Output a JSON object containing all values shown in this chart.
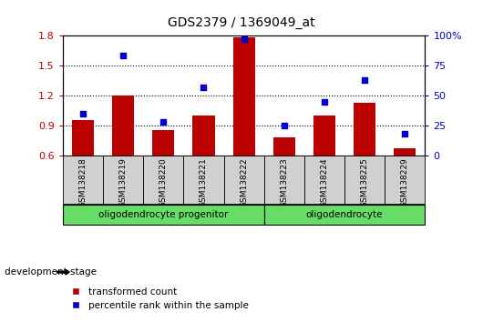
{
  "title": "GDS2379 / 1369049_at",
  "samples": [
    "GSM138218",
    "GSM138219",
    "GSM138220",
    "GSM138221",
    "GSM138222",
    "GSM138223",
    "GSM138224",
    "GSM138225",
    "GSM138229"
  ],
  "transformed_counts": [
    0.95,
    1.2,
    0.85,
    1.0,
    1.78,
    0.78,
    1.0,
    1.13,
    0.67
  ],
  "percentile_ranks": [
    35,
    83,
    28,
    57,
    97,
    25,
    45,
    63,
    18
  ],
  "ylim_left": [
    0.6,
    1.8
  ],
  "ylim_right": [
    0,
    100
  ],
  "yticks_left": [
    0.6,
    0.9,
    1.2,
    1.5,
    1.8
  ],
  "yticks_right": [
    0,
    25,
    50,
    75,
    100
  ],
  "ytick_labels_right": [
    "0",
    "25",
    "50",
    "75",
    "100%"
  ],
  "bar_color": "#bb0000",
  "scatter_color": "#0000cc",
  "groups": [
    {
      "label": "oligodendrocyte progenitor",
      "start": 0,
      "end": 4,
      "color": "#66dd66"
    },
    {
      "label": "oligodendrocyte",
      "start": 5,
      "end": 8,
      "color": "#66dd66"
    }
  ],
  "dev_stage_label": "development stage",
  "legend_bar_label": "transformed count",
  "legend_scatter_label": "percentile rank within the sample",
  "title_fontsize": 10,
  "tick_fontsize": 8,
  "bar_width": 0.55,
  "xtick_bg_color": "#d0d0d0",
  "spine_color": "#000000",
  "hgrid_values": [
    0.9,
    1.2,
    1.5
  ],
  "group_border_color": "#000000"
}
